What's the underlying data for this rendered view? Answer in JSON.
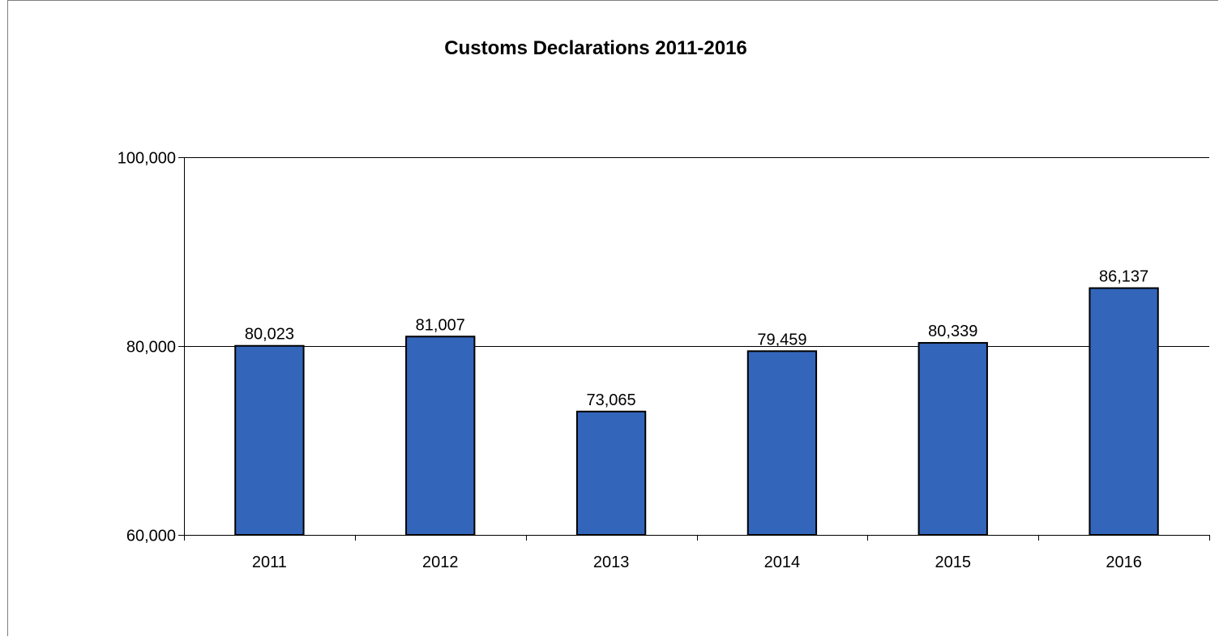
{
  "chart_data": {
    "type": "bar",
    "title": "Customs Declarations 2011-2016",
    "xlabel": "",
    "ylabel": "",
    "categories": [
      "2011",
      "2012",
      "2013",
      "2014",
      "2015",
      "2016"
    ],
    "values": [
      80023,
      81007,
      73065,
      79459,
      80339,
      86137
    ],
    "value_labels": [
      "80,023",
      "81,007",
      "73,065",
      "79,459",
      "80,339",
      "86,137"
    ],
    "ylim": [
      60000,
      100000
    ],
    "yticks": [
      60000,
      80000,
      100000
    ],
    "ytick_labels": [
      "60,000",
      "80,000",
      "100,000"
    ],
    "grid": true,
    "legend": "none",
    "bar_color": "#3366BB",
    "bar_edge_color": "#000000"
  }
}
